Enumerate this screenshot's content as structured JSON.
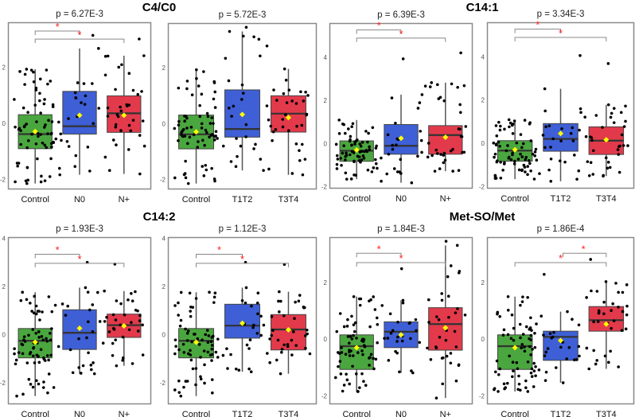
{
  "chart_data": {
    "type": "boxplot",
    "group_titles": [
      "C4/C0",
      "C14:1",
      "C14:2",
      "Met-SO/Met"
    ],
    "colors": {
      "Control": "#4aa63e",
      "N0": "#3e5fd6",
      "N+": "#e23a4b",
      "T1T2": "#3e5fd6",
      "T3T4": "#e23a4b",
      "mean": "#ffff00",
      "star": "#ff2020"
    },
    "panels": [
      {
        "p_label": "p = 6.27E-3",
        "ylim": [
          -2.35,
          3.6
        ],
        "yticks": [
          -2,
          0,
          2
        ],
        "categories": [
          "Control",
          "N0",
          "N+"
        ],
        "stats": [
          [
            -2.14,
            -0.9,
            -0.38,
            0.31,
            1.93,
            -0.29,
            70
          ],
          [
            -1.83,
            -0.38,
            -0.1,
            1.14,
            2.67,
            0.29,
            25
          ],
          [
            -1.8,
            -0.32,
            0.36,
            0.98,
            2.41,
            0.29,
            35
          ]
        ],
        "brackets": [
          {
            "pair": [
              0,
              1
            ],
            "y": 3.29,
            "label": "*"
          },
          {
            "pair": [
              0,
              2
            ],
            "y": 3.0,
            "label": "*"
          }
        ]
      },
      {
        "p_label": "p = 5.72E-3",
        "ylim": [
          -2.35,
          3.6
        ],
        "yticks": [
          -2,
          0,
          2
        ],
        "categories": [
          "Control",
          "T1T2",
          "T3T4"
        ],
        "stats": [
          [
            -2.14,
            -0.9,
            -0.38,
            0.31,
            1.93,
            -0.29,
            70
          ],
          [
            -1.67,
            -0.48,
            -0.19,
            1.21,
            3.3,
            0.33,
            25
          ],
          [
            -1.83,
            -0.3,
            0.36,
            1.0,
            1.96,
            0.22,
            35
          ]
        ],
        "brackets": []
      },
      {
        "p_label": "p = 6.39E-3",
        "ylim": [
          -2.1,
          5.6
        ],
        "yticks": [
          -2,
          0,
          2,
          4
        ],
        "categories": [
          "Control",
          "N0",
          "N+"
        ],
        "stats": [
          [
            -1.66,
            -0.83,
            -0.34,
            0.12,
            1.09,
            -0.3,
            70
          ],
          [
            -1.83,
            -0.5,
            -0.11,
            0.88,
            2.27,
            0.24,
            25
          ],
          [
            -1.29,
            -0.5,
            0.39,
            0.83,
            2.83,
            0.29,
            35
          ]
        ],
        "brackets": [
          {
            "pair": [
              0,
              1
            ],
            "y": 5.28,
            "label": "*"
          },
          {
            "pair": [
              0,
              2
            ],
            "y": 4.9,
            "label": "*"
          }
        ]
      },
      {
        "p_label": "p = 3.34E-3",
        "ylim": [
          -2.1,
          5.6
        ],
        "yticks": [
          -2,
          0,
          2,
          4
        ],
        "categories": [
          "Control",
          "T1T2",
          "T3T4"
        ],
        "stats": [
          [
            -1.66,
            -0.83,
            -0.34,
            0.12,
            1.09,
            -0.3,
            70
          ],
          [
            -1.76,
            -0.37,
            0.2,
            0.91,
            2.52,
            0.45,
            25
          ],
          [
            -1.52,
            -0.52,
            0.12,
            0.76,
            1.78,
            0.16,
            35
          ]
        ],
        "brackets": [
          {
            "pair": [
              0,
              1
            ],
            "y": 5.28,
            "label": "*"
          },
          {
            "pair": [
              0,
              2
            ],
            "y": 4.9,
            "label": "*"
          }
        ]
      },
      {
        "p_label": "p = 1.93E-3",
        "ylim": [
          -2.9,
          4.05
        ],
        "yticks": [
          -2,
          0,
          2,
          4
        ],
        "categories": [
          "Control",
          "N0",
          "N+"
        ],
        "stats": [
          [
            -2.56,
            -0.97,
            -0.26,
            0.25,
            1.76,
            -0.32,
            70
          ],
          [
            -1.63,
            -0.62,
            0.07,
            1.03,
            1.95,
            0.26,
            25
          ],
          [
            -1.3,
            -0.12,
            0.39,
            0.85,
            1.81,
            0.36,
            35
          ]
        ],
        "brackets": [
          {
            "pair": [
              0,
              1
            ],
            "y": 3.34,
            "label": "*"
          },
          {
            "pair": [
              0,
              2
            ],
            "y": 2.96,
            "label": "*"
          }
        ]
      },
      {
        "p_label": "p = 1.12E-3",
        "ylim": [
          -2.9,
          4.05
        ],
        "yticks": [
          -2,
          0,
          2,
          4
        ],
        "categories": [
          "Control",
          "T1T2",
          "T3T4"
        ],
        "stats": [
          [
            -2.56,
            -0.97,
            -0.26,
            0.25,
            1.76,
            -0.32,
            70
          ],
          [
            -1.55,
            -0.15,
            0.37,
            1.26,
            1.95,
            0.47,
            25
          ],
          [
            -1.63,
            -0.64,
            0.21,
            0.83,
            1.78,
            0.2,
            35
          ]
        ],
        "brackets": [
          {
            "pair": [
              0,
              1
            ],
            "y": 3.34,
            "label": "*"
          },
          {
            "pair": [
              0,
              2
            ],
            "y": 2.96,
            "label": "*"
          }
        ]
      },
      {
        "p_label": "p = 1.84E-3",
        "ylim": [
          -2.3,
          3.6
        ],
        "yticks": [
          -2,
          0,
          2
        ],
        "categories": [
          "Control",
          "N0",
          "N+"
        ],
        "stats": [
          [
            -1.85,
            -1.07,
            -0.25,
            0.15,
            1.5,
            -0.3,
            70
          ],
          [
            -1.19,
            -0.3,
            0.26,
            0.61,
            1.37,
            0.15,
            25
          ],
          [
            -2.08,
            -0.39,
            0.53,
            1.11,
            3.31,
            0.4,
            35
          ]
        ],
        "brackets": [
          {
            "pair": [
              0,
              1
            ],
            "y": 3.03,
            "label": "*"
          },
          {
            "pair": [
              0,
              2
            ],
            "y": 2.7,
            "label": "*"
          }
        ]
      },
      {
        "p_label": "p = 1.86E-4",
        "ylim": [
          -2.3,
          3.6
        ],
        "yticks": [
          -2,
          0,
          2
        ],
        "categories": [
          "Control",
          "T1T2",
          "T3T4"
        ],
        "stats": [
          [
            -1.85,
            -1.07,
            -0.25,
            0.15,
            1.5,
            -0.3,
            70
          ],
          [
            -1.54,
            -0.75,
            0.08,
            0.28,
            0.97,
            -0.05,
            25
          ],
          [
            -1.05,
            0.28,
            0.67,
            1.15,
            2.03,
            0.53,
            35
          ]
        ],
        "brackets": [
          {
            "pair": [
              1,
              2
            ],
            "y": 3.03,
            "label": "*"
          },
          {
            "pair": [
              0,
              2
            ],
            "y": 2.7,
            "label": "*"
          }
        ]
      }
    ],
    "stats_order": [
      "whisker_low",
      "q1",
      "median",
      "q3",
      "whisker_high",
      "mean",
      "n_points"
    ]
  }
}
